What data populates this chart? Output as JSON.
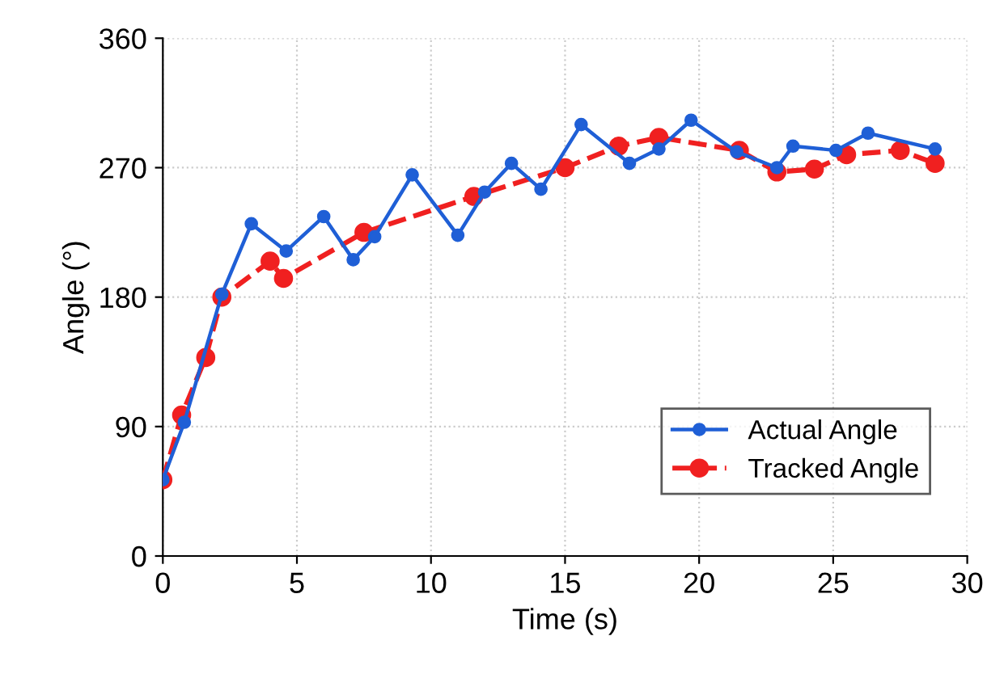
{
  "chart_data": {
    "type": "line",
    "xlabel": "Time (s)",
    "ylabel": "Angle (°)",
    "xlim": [
      0,
      30
    ],
    "ylim": [
      0,
      360
    ],
    "xticks": [
      0,
      5,
      10,
      15,
      20,
      25,
      30
    ],
    "yticks": [
      0,
      90,
      180,
      270,
      360
    ],
    "grid": true,
    "legend": "bottom right",
    "series": [
      {
        "name": "Actual Angle",
        "color": "#1f5fd6",
        "marker": "circle",
        "line_style": "solid",
        "x": [
          0,
          0.8,
          2.2,
          3.3,
          4.6,
          6.0,
          7.1,
          7.9,
          9.3,
          11.0,
          12.0,
          13.0,
          14.1,
          15.6,
          17.4,
          18.5,
          19.7,
          21.4,
          22.9,
          23.5,
          25.1,
          26.3,
          28.8
        ],
        "values": [
          53,
          93,
          182,
          231,
          212,
          236,
          206,
          222,
          265,
          223,
          253,
          273,
          255,
          300,
          273,
          283,
          303,
          281,
          270,
          285,
          282,
          294,
          283
        ]
      },
      {
        "name": "Tracked Angle",
        "color": "#f02020",
        "marker": "circle",
        "line_style": "dashed",
        "x": [
          0,
          0.7,
          1.6,
          2.2,
          4.0,
          4.5,
          7.5,
          11.6,
          15.0,
          17.0,
          18.5,
          21.5,
          22.9,
          24.3,
          25.5,
          27.5,
          28.8
        ],
        "values": [
          53,
          98,
          138,
          180,
          205,
          193,
          225,
          250,
          270,
          285,
          291,
          282,
          267,
          269,
          279,
          282,
          273
        ]
      }
    ]
  }
}
